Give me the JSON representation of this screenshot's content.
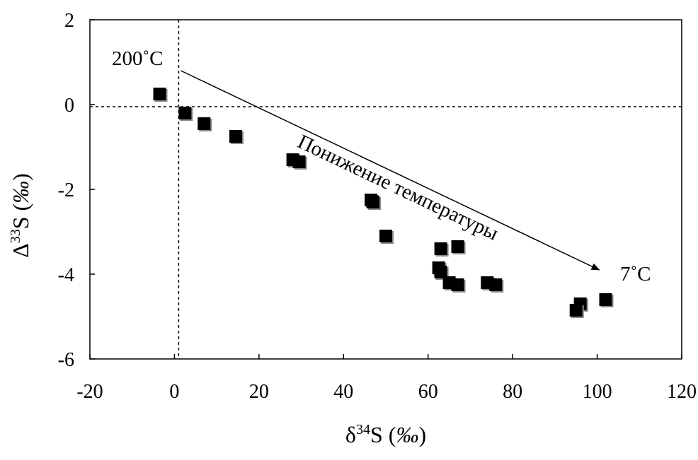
{
  "chart_data": {
    "type": "scatter",
    "xlabel": {
      "greek": "δ",
      "sup": "34",
      "main": "S",
      "unit": "‰"
    },
    "ylabel": {
      "greek": "Δ",
      "sup": "33",
      "main": "S",
      "unit": "‰"
    },
    "xlim": [
      -20,
      120
    ],
    "ylim": [
      -6,
      2
    ],
    "x_ticks": [
      -20,
      0,
      20,
      40,
      60,
      80,
      100,
      120
    ],
    "y_ticks": [
      -6,
      -4,
      -2,
      0,
      2
    ],
    "x_tick_labels": [
      "-20",
      "0",
      "20",
      "40",
      "60",
      "80",
      "100",
      "120"
    ],
    "y_tick_labels": [
      "-6",
      "-4",
      "-2",
      "0",
      "2"
    ],
    "grid": false,
    "reference_lines": {
      "vertical_x": 1,
      "horizontal_y": -0.05
    },
    "series": [
      {
        "marker": "filled-square",
        "color": "#000000",
        "points": [
          {
            "x": -3.5,
            "y": 0.25
          },
          {
            "x": 2.5,
            "y": -0.2
          },
          {
            "x": 7,
            "y": -0.45
          },
          {
            "x": 14.5,
            "y": -0.75
          },
          {
            "x": 28,
            "y": -1.3
          },
          {
            "x": 29.5,
            "y": -1.35
          },
          {
            "x": 46.5,
            "y": -2.25
          },
          {
            "x": 47,
            "y": -2.3
          },
          {
            "x": 50,
            "y": -3.1
          },
          {
            "x": 63,
            "y": -3.4
          },
          {
            "x": 67,
            "y": -3.35
          },
          {
            "x": 62.5,
            "y": -3.85
          },
          {
            "x": 63,
            "y": -3.95
          },
          {
            "x": 65,
            "y": -4.2
          },
          {
            "x": 67,
            "y": -4.25
          },
          {
            "x": 74,
            "y": -4.2
          },
          {
            "x": 76,
            "y": -4.25
          },
          {
            "x": 96,
            "y": -4.7
          },
          {
            "x": 95,
            "y": -4.85
          },
          {
            "x": 102,
            "y": -4.6
          }
        ]
      }
    ],
    "annotations": {
      "start_label": "200˚C",
      "end_label": "7˚C",
      "arrow_label": "Понижение температуры",
      "arrow": {
        "from": [
          1.5,
          0.8
        ],
        "to": [
          100.5,
          -3.9
        ]
      }
    }
  }
}
